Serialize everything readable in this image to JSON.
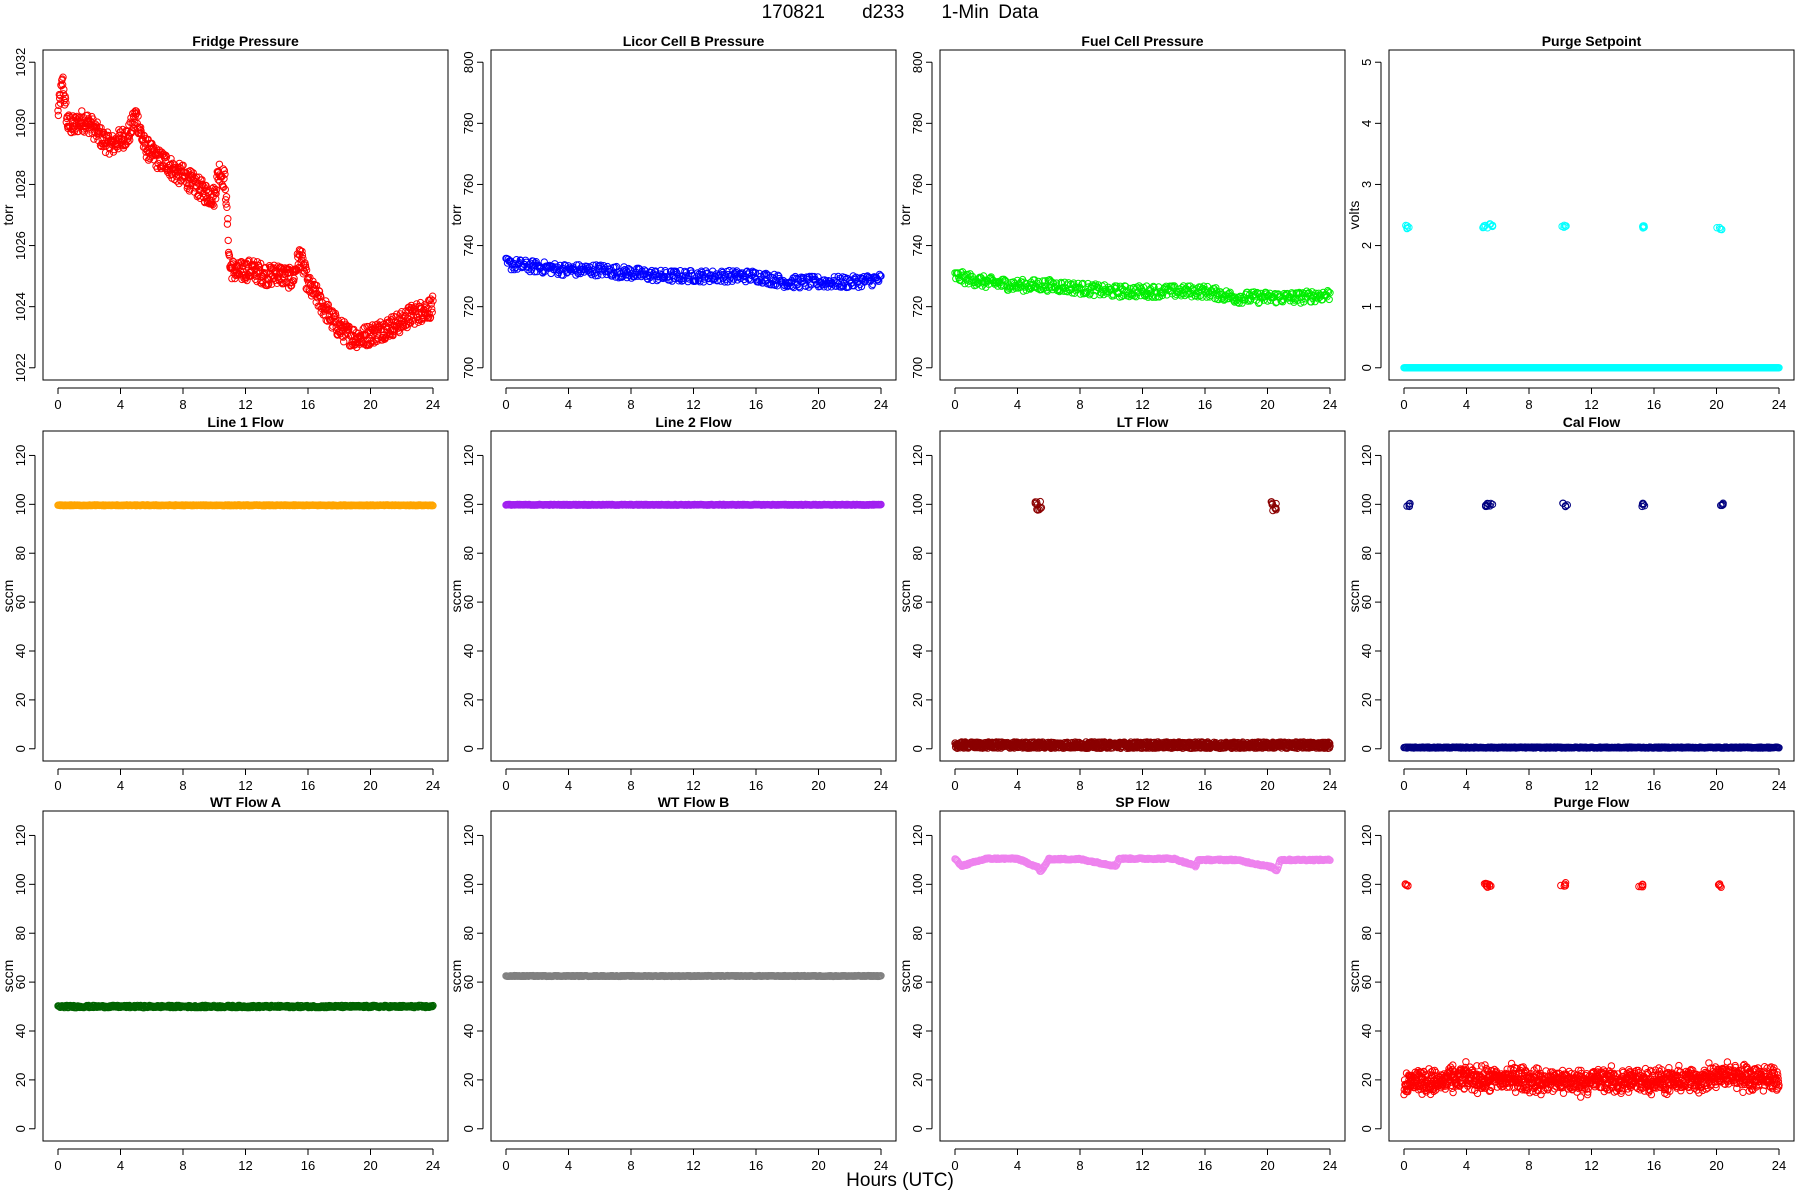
{
  "figure": {
    "title": "170821    d233    1-Min Data",
    "xlabel": "Hours (UTC)"
  },
  "chart_data": [
    {
      "type": "scatter",
      "title": "Fridge Pressure",
      "ylabel": "torr",
      "xlim": [
        0,
        24
      ],
      "ylim": [
        1022,
        1032
      ],
      "xticks": [
        0,
        4,
        8,
        12,
        16,
        20,
        24
      ],
      "yticks": [
        1022,
        1024,
        1026,
        1028,
        1030,
        1032
      ],
      "marker": "open-circle",
      "series": [
        {
          "color": "#ff0000",
          "values": [
            [
              0,
              1030.3
            ],
            [
              0.3,
              1031.4
            ],
            [
              0.6,
              1030.0
            ],
            [
              1,
              1029.9
            ],
            [
              1.5,
              1030.1
            ],
            [
              2,
              1030.0
            ],
            [
              2.5,
              1029.7
            ],
            [
              3,
              1029.4
            ],
            [
              3.5,
              1029.3
            ],
            [
              4,
              1029.5
            ],
            [
              4.5,
              1029.6
            ],
            [
              5,
              1030.3
            ],
            [
              5.5,
              1029.3
            ],
            [
              6,
              1029.0
            ],
            [
              6.5,
              1028.8
            ],
            [
              7,
              1028.7
            ],
            [
              7.5,
              1028.4
            ],
            [
              8,
              1028.3
            ],
            [
              8.5,
              1028.1
            ],
            [
              9,
              1027.9
            ],
            [
              9.5,
              1027.7
            ],
            [
              10,
              1027.6
            ],
            [
              10.3,
              1028.5
            ],
            [
              10.7,
              1028.1
            ],
            [
              11,
              1025.3
            ],
            [
              11.5,
              1025.1
            ],
            [
              12,
              1025.2
            ],
            [
              12.5,
              1025.2
            ],
            [
              13,
              1025.1
            ],
            [
              13.5,
              1025.0
            ],
            [
              14,
              1025.1
            ],
            [
              14.5,
              1025.0
            ],
            [
              15,
              1024.9
            ],
            [
              15.5,
              1025.7
            ],
            [
              16,
              1024.7
            ],
            [
              16.5,
              1024.4
            ],
            [
              17,
              1024.0
            ],
            [
              17.5,
              1023.6
            ],
            [
              18,
              1023.3
            ],
            [
              18.5,
              1023.1
            ],
            [
              19,
              1023.0
            ],
            [
              19.5,
              1023.0
            ],
            [
              20,
              1023.1
            ],
            [
              20.5,
              1023.2
            ],
            [
              21,
              1023.3
            ],
            [
              21.5,
              1023.4
            ],
            [
              22,
              1023.5
            ],
            [
              22.5,
              1023.7
            ],
            [
              23,
              1023.8
            ],
            [
              23.5,
              1023.9
            ],
            [
              24,
              1024.0
            ]
          ]
        }
      ]
    },
    {
      "type": "scatter",
      "title": "Licor Cell B Pressure",
      "ylabel": "torr",
      "xlim": [
        0,
        24
      ],
      "ylim": [
        700,
        800
      ],
      "xticks": [
        0,
        4,
        8,
        12,
        16,
        20,
        24
      ],
      "yticks": [
        700,
        720,
        740,
        760,
        780,
        800
      ],
      "marker": "open-circle",
      "series": [
        {
          "color": "#0000ff",
          "values": [
            [
              0,
              734
            ],
            [
              2,
              733
            ],
            [
              4,
              732
            ],
            [
              6,
              732
            ],
            [
              8,
              731
            ],
            [
              10,
              730
            ],
            [
              12,
              730
            ],
            [
              14,
              730
            ],
            [
              16,
              730
            ],
            [
              18,
              728
            ],
            [
              20,
              728
            ],
            [
              22,
              728
            ],
            [
              24,
              729
            ]
          ]
        }
      ]
    },
    {
      "type": "scatter",
      "title": "Fuel Cell Pressure",
      "ylabel": "torr",
      "xlim": [
        0,
        24
      ],
      "ylim": [
        700,
        800
      ],
      "xticks": [
        0,
        4,
        8,
        12,
        16,
        20,
        24
      ],
      "yticks": [
        700,
        720,
        740,
        760,
        780,
        800
      ],
      "marker": "open-circle",
      "series": [
        {
          "color": "#00ee00",
          "values": [
            [
              0,
              730
            ],
            [
              2,
              728
            ],
            [
              4,
              727
            ],
            [
              6,
              727
            ],
            [
              8,
              726
            ],
            [
              10,
              725
            ],
            [
              12,
              725
            ],
            [
              14,
              725
            ],
            [
              16,
              725
            ],
            [
              18,
              723
            ],
            [
              20,
              723
            ],
            [
              22,
              723
            ],
            [
              24,
              724
            ]
          ]
        }
      ]
    },
    {
      "type": "scatter",
      "title": "Purge Setpoint",
      "ylabel": "volts",
      "xlim": [
        0,
        24
      ],
      "ylim": [
        0,
        5
      ],
      "xticks": [
        0,
        4,
        8,
        12,
        16,
        20,
        24
      ],
      "yticks": [
        0,
        1,
        2,
        3,
        4,
        5
      ],
      "marker": "open-circle",
      "series": [
        {
          "color": "#00ffff",
          "values": [
            [
              0,
              0
            ],
            [
              4,
              0
            ],
            [
              8,
              0
            ],
            [
              12,
              0
            ],
            [
              16,
              0
            ],
            [
              20,
              0
            ],
            [
              24,
              0
            ],
            [
              0.2,
              2.3
            ],
            [
              5.2,
              2.3
            ],
            [
              5.5,
              2.33
            ],
            [
              10.2,
              2.33
            ],
            [
              15.2,
              2.3
            ],
            [
              20.2,
              2.27
            ]
          ]
        }
      ]
    },
    {
      "type": "scatter",
      "title": "Line 1 Flow",
      "ylabel": "sccm",
      "xlim": [
        0,
        24
      ],
      "ylim": [
        0,
        125
      ],
      "xticks": [
        0,
        4,
        8,
        12,
        16,
        20,
        24
      ],
      "yticks": [
        0,
        20,
        40,
        60,
        80,
        100,
        120
      ],
      "marker": "open-circle",
      "series": [
        {
          "color": "#ffa500",
          "values": [
            [
              0,
              99.6
            ],
            [
              4,
              99.6
            ],
            [
              8,
              99.6
            ],
            [
              12,
              99.6
            ],
            [
              16,
              99.6
            ],
            [
              20,
              99.6
            ],
            [
              24,
              99.6
            ]
          ]
        }
      ]
    },
    {
      "type": "scatter",
      "title": "Line 2 Flow",
      "ylabel": "sccm",
      "xlim": [
        0,
        24
      ],
      "ylim": [
        0,
        125
      ],
      "xticks": [
        0,
        4,
        8,
        12,
        16,
        20,
        24
      ],
      "yticks": [
        0,
        20,
        40,
        60,
        80,
        100,
        120
      ],
      "marker": "open-circle",
      "series": [
        {
          "color": "#a020f0",
          "values": [
            [
              0,
              99.8
            ],
            [
              4,
              99.8
            ],
            [
              8,
              99.8
            ],
            [
              12,
              99.8
            ],
            [
              16,
              99.8
            ],
            [
              20,
              99.8
            ],
            [
              24,
              99.8
            ]
          ]
        }
      ]
    },
    {
      "type": "scatter",
      "title": "LT Flow",
      "ylabel": "sccm",
      "xlim": [
        0,
        24
      ],
      "ylim": [
        0,
        125
      ],
      "xticks": [
        0,
        4,
        8,
        12,
        16,
        20,
        24
      ],
      "yticks": [
        0,
        20,
        40,
        60,
        80,
        100,
        120
      ],
      "marker": "open-circle",
      "series": [
        {
          "color": "#8b0000",
          "values": [
            [
              0,
              1.5
            ],
            [
              4,
              1.5
            ],
            [
              8,
              1.5
            ],
            [
              12,
              1.5
            ],
            [
              16,
              1.5
            ],
            [
              20,
              1.5
            ],
            [
              24,
              1.5
            ],
            [
              5.3,
              100.5
            ],
            [
              5.4,
              98
            ],
            [
              20.4,
              100.5
            ],
            [
              20.5,
              98
            ]
          ]
        }
      ]
    },
    {
      "type": "scatter",
      "title": "Cal Flow",
      "ylabel": "sccm",
      "xlim": [
        0,
        24
      ],
      "ylim": [
        0,
        125
      ],
      "xticks": [
        0,
        4,
        8,
        12,
        16,
        20,
        24
      ],
      "yticks": [
        0,
        20,
        40,
        60,
        80,
        100,
        120
      ],
      "marker": "open-circle",
      "series": [
        {
          "color": "#000080",
          "values": [
            [
              0,
              0.5
            ],
            [
              4,
              0.5
            ],
            [
              8,
              0.5
            ],
            [
              12,
              0.5
            ],
            [
              16,
              0.5
            ],
            [
              20,
              0.5
            ],
            [
              24,
              0.5
            ],
            [
              0.3,
              99.8
            ],
            [
              5.2,
              99.8
            ],
            [
              5.5,
              99.8
            ],
            [
              10.3,
              99.8
            ],
            [
              15.3,
              99.8
            ],
            [
              20.3,
              99.8
            ]
          ]
        }
      ]
    },
    {
      "type": "scatter",
      "title": "WT Flow A",
      "ylabel": "sccm",
      "xlim": [
        0,
        24
      ],
      "ylim": [
        0,
        125
      ],
      "xticks": [
        0,
        4,
        8,
        12,
        16,
        20,
        24
      ],
      "yticks": [
        0,
        20,
        40,
        60,
        80,
        100,
        120
      ],
      "marker": "open-circle",
      "series": [
        {
          "color": "#006400",
          "values": [
            [
              0,
              50
            ],
            [
              4,
              50
            ],
            [
              8,
              50
            ],
            [
              12,
              50
            ],
            [
              16,
              50
            ],
            [
              20,
              50
            ],
            [
              24,
              50
            ]
          ]
        }
      ]
    },
    {
      "type": "scatter",
      "title": "WT Flow B",
      "ylabel": "sccm",
      "xlim": [
        0,
        24
      ],
      "ylim": [
        0,
        125
      ],
      "xticks": [
        0,
        4,
        8,
        12,
        16,
        20,
        24
      ],
      "yticks": [
        0,
        20,
        40,
        60,
        80,
        100,
        120
      ],
      "marker": "open-circle",
      "series": [
        {
          "color": "#808080",
          "values": [
            [
              0,
              62.5
            ],
            [
              4,
              62.5
            ],
            [
              8,
              62.5
            ],
            [
              12,
              62.5
            ],
            [
              16,
              62.5
            ],
            [
              20,
              62.5
            ],
            [
              24,
              62.5
            ]
          ]
        }
      ]
    },
    {
      "type": "scatter",
      "title": "SP Flow",
      "ylabel": "sccm",
      "xlim": [
        0,
        24
      ],
      "ylim": [
        0,
        125
      ],
      "xticks": [
        0,
        4,
        8,
        12,
        16,
        20,
        24
      ],
      "yticks": [
        0,
        20,
        40,
        60,
        80,
        100,
        120
      ],
      "marker": "open-circle",
      "series": [
        {
          "color": "#ee82ee",
          "values": [
            [
              0,
              110.5
            ],
            [
              0.4,
              107.5
            ],
            [
              2,
              110.5
            ],
            [
              4,
              110.5
            ],
            [
              5.3,
              107
            ],
            [
              5.5,
              105
            ],
            [
              6,
              110.3
            ],
            [
              8,
              110.3
            ],
            [
              10.3,
              107.5
            ],
            [
              10.5,
              110.5
            ],
            [
              12,
              110.5
            ],
            [
              14,
              110.5
            ],
            [
              15.4,
              107.5
            ],
            [
              15.6,
              110
            ],
            [
              18,
              110
            ],
            [
              20.3,
              107
            ],
            [
              20.6,
              105.5
            ],
            [
              20.8,
              110
            ],
            [
              22,
              110
            ],
            [
              24,
              110
            ]
          ]
        }
      ]
    },
    {
      "type": "scatter",
      "title": "Purge Flow",
      "ylabel": "sccm",
      "xlim": [
        0,
        24
      ],
      "ylim": [
        0,
        125
      ],
      "xticks": [
        0,
        4,
        8,
        12,
        16,
        20,
        24
      ],
      "yticks": [
        0,
        20,
        40,
        60,
        80,
        100,
        120
      ],
      "marker": "open-circle",
      "series": [
        {
          "color": "#ff0000",
          "values": [
            [
              0,
              19
            ],
            [
              1,
              20
            ],
            [
              2,
              19
            ],
            [
              3,
              20
            ],
            [
              4,
              21
            ],
            [
              5,
              20
            ],
            [
              6,
              20
            ],
            [
              7,
              21
            ],
            [
              8,
              20
            ],
            [
              9,
              19
            ],
            [
              10,
              20
            ],
            [
              11,
              19
            ],
            [
              12,
              20
            ],
            [
              13,
              20
            ],
            [
              14,
              19
            ],
            [
              15,
              20
            ],
            [
              16,
              20
            ],
            [
              17,
              19
            ],
            [
              18,
              20
            ],
            [
              19,
              20
            ],
            [
              20,
              21
            ],
            [
              21,
              22
            ],
            [
              22,
              21
            ],
            [
              23,
              21
            ],
            [
              24,
              20
            ],
            [
              0.2,
              99.8
            ],
            [
              5.2,
              100
            ],
            [
              5.5,
              99.5
            ],
            [
              10.2,
              100
            ],
            [
              15.2,
              99.5
            ],
            [
              20.2,
              99.5
            ]
          ]
        }
      ]
    }
  ]
}
